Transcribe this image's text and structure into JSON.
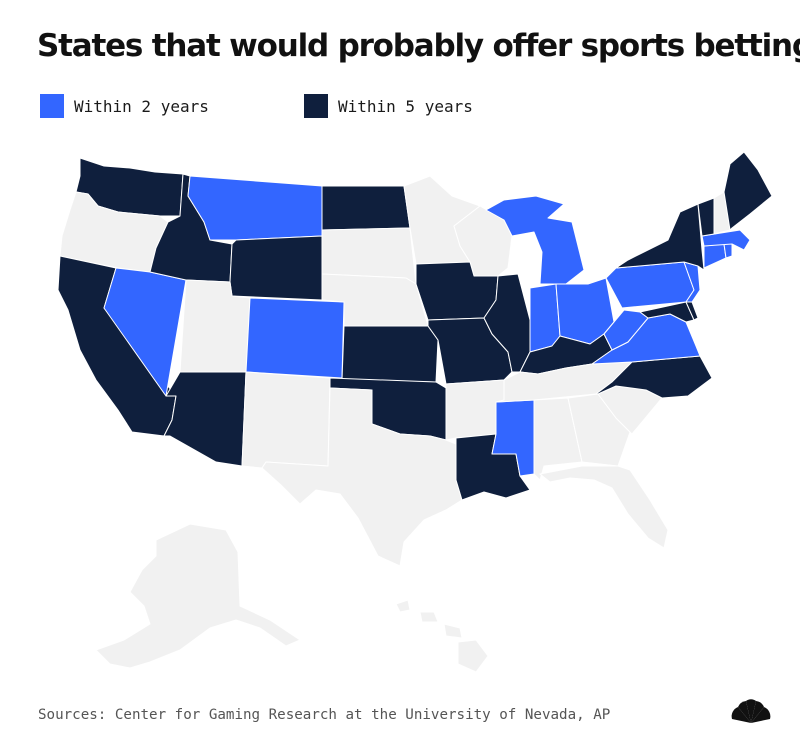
{
  "title": "States that would probably offer sports betting",
  "legend": [
    {
      "label": "Within 2 years",
      "color": "#3366ff"
    },
    {
      "label": "Within 5 years",
      "color": "#0f1f3d"
    }
  ],
  "colors": {
    "none": "#f1f1f1",
    "within_2": "#3366ff",
    "within_5": "#0f1f3d",
    "border": "#ffffff"
  },
  "source": "Sources: Center for Gaming Research at the University of Nevada, AP",
  "logo_icon": "nbc-peacock-icon",
  "states": {
    "within_2_years": [
      "MT",
      "NV",
      "CO",
      "MI",
      "IN",
      "OH",
      "WV",
      "VA",
      "PA",
      "NJ",
      "MS",
      "CT",
      "RI",
      "MA"
    ],
    "within_5_years": [
      "WA",
      "ID",
      "WY",
      "ND",
      "CA",
      "AZ",
      "KS",
      "IA",
      "MO",
      "IL",
      "OK",
      "LA",
      "KY",
      "NC",
      "NY",
      "VT",
      "ME",
      "MD",
      "DE"
    ],
    "none": [
      "OR",
      "UT",
      "NM",
      "TX",
      "SD",
      "NE",
      "MN",
      "WI",
      "AR",
      "TN",
      "AL",
      "GA",
      "FL",
      "SC",
      "NH",
      "AK",
      "HI"
    ]
  }
}
